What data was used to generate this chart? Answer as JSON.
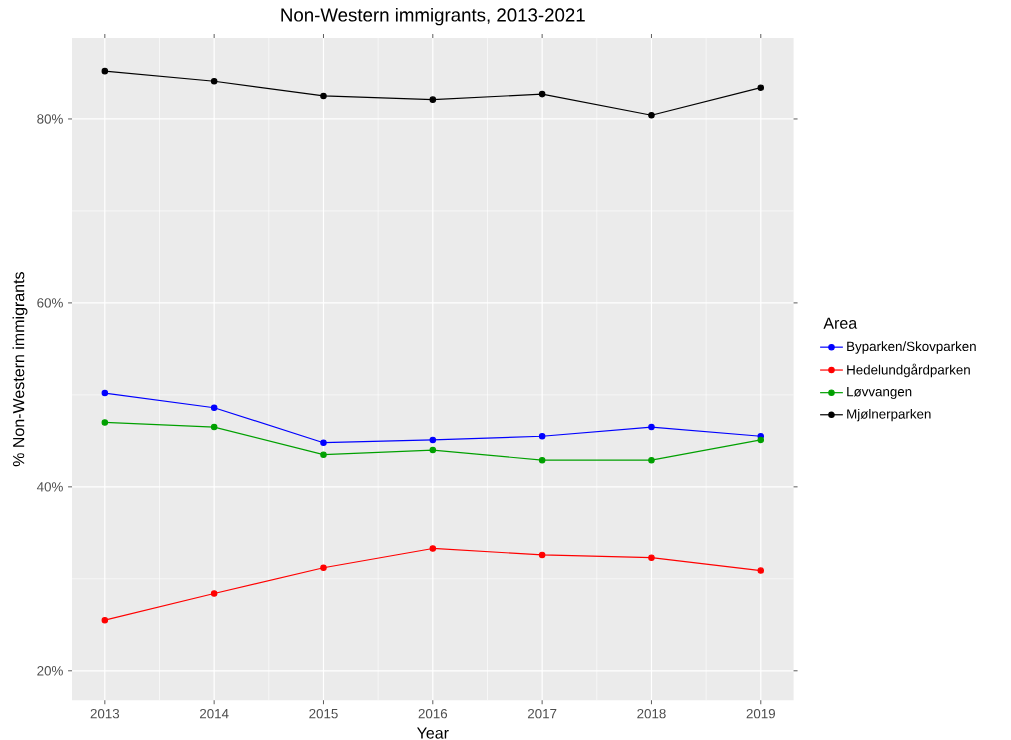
{
  "chart_data": {
    "type": "line",
    "title": "Non-Western immigrants, 2013-2021",
    "xlabel": "Year",
    "ylabel": "% Non-Western immigrants",
    "legend_title": "Area",
    "x": [
      2013,
      2014,
      2015,
      2016,
      2017,
      2018,
      2019
    ],
    "series": [
      {
        "name": "Byparken/Skovparken",
        "color": "#0000ff",
        "values": [
          50.2,
          48.6,
          44.8,
          45.1,
          45.5,
          46.5,
          45.5
        ]
      },
      {
        "name": "Hedelundgårdparken",
        "color": "#ff0000",
        "values": [
          25.5,
          28.4,
          31.2,
          33.3,
          32.6,
          32.3,
          30.9
        ]
      },
      {
        "name": "Løvvangen",
        "color": "#00a000",
        "values": [
          47.0,
          46.5,
          43.5,
          44.0,
          42.9,
          42.9,
          45.1
        ]
      },
      {
        "name": "Mjølnerparken",
        "color": "#000000",
        "values": [
          85.2,
          84.1,
          82.5,
          82.1,
          82.7,
          80.4,
          83.4
        ]
      }
    ],
    "xlim": [
      2012.7,
      2019.3
    ],
    "ylim": [
      16.8,
      88.8
    ],
    "xticks": [
      2013,
      2014,
      2015,
      2016,
      2017,
      2018,
      2019
    ],
    "yticks": [
      {
        "value": 20,
        "label": "20%"
      },
      {
        "value": 40,
        "label": "40%"
      },
      {
        "value": 60,
        "label": "60%"
      },
      {
        "value": 80,
        "label": "80%"
      }
    ],
    "grid": true,
    "legend": "right",
    "marker": "circle",
    "line_style": "solid"
  }
}
